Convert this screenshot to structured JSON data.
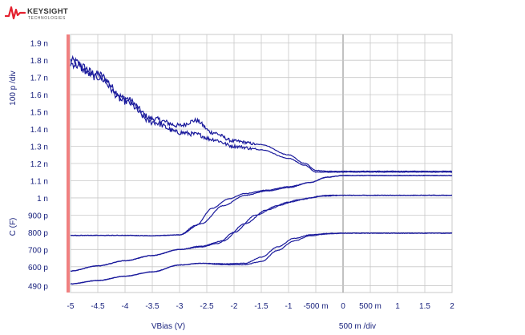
{
  "brand": {
    "name": "KEYSIGHT",
    "sub": "TECHNOLOGIES",
    "logo_color": "#e4202e"
  },
  "colors": {
    "trace": "#1a1a9c",
    "grid": "#c8c8c8",
    "zero_line": "#a0a0a0",
    "marker_bar": "#f08080",
    "text": "#1a237e"
  },
  "chart_data": {
    "type": "line",
    "xlabel": "VBias (V)",
    "x_scale_label": "500 m /div",
    "y_axis_label": "C (F)",
    "y_scale_label": "100 p /div",
    "xlim": [
      -5,
      2
    ],
    "ylim": [
      0.45,
      1.95
    ],
    "y_unit": "nF",
    "x_ticks": [
      "-5",
      "-4.5",
      "-4",
      "-3.5",
      "-3",
      "-2.5",
      "-2",
      "-1.5",
      "-1",
      "-500 m",
      "0",
      "500 m",
      "1",
      "1.5",
      "2"
    ],
    "y_ticks": [
      "1.9 n",
      "1.8 n",
      "1.7 n",
      "1.6 n",
      "1.5 n",
      "1.4 n",
      "1.3 n",
      "1.2 n",
      "1.1 n",
      "1 n",
      "900 p",
      "800 p",
      "700 p",
      "600 p",
      "490 p"
    ],
    "series": [
      {
        "x": [
          -5,
          -4.5,
          -4,
          -3.5,
          -3,
          -2.7,
          -2.4,
          -2,
          -1.5,
          -1,
          -0.7,
          -0.5,
          -0.3,
          0,
          0.5,
          1,
          1.5,
          2
        ],
        "y": [
          1.8,
          1.72,
          1.58,
          1.46,
          1.42,
          1.45,
          1.38,
          1.33,
          1.31,
          1.25,
          1.2,
          1.16,
          1.155,
          1.155,
          1.155,
          1.155,
          1.155,
          1.155
        ]
      },
      {
        "x": [
          -5,
          -4.5,
          -4,
          -3.5,
          -3,
          -2.7,
          -2.4,
          -2,
          -1.5,
          -1,
          -0.7,
          -0.5,
          -0.3,
          0,
          0.5,
          1,
          1.5,
          2
        ],
        "y": [
          1.78,
          1.7,
          1.56,
          1.44,
          1.38,
          1.37,
          1.34,
          1.3,
          1.28,
          1.23,
          1.19,
          1.15,
          1.15,
          1.15,
          1.15,
          1.15,
          1.15,
          1.15
        ]
      },
      {
        "x": [
          -5,
          -4,
          -3.5,
          -3,
          -2.6,
          -2.2,
          -1.8,
          -1.4,
          -1,
          -0.6,
          -0.3,
          0,
          0.5,
          1,
          1.5,
          2
        ],
        "y": [
          0.782,
          0.782,
          0.78,
          0.785,
          0.85,
          0.955,
          1.015,
          1.04,
          1.06,
          1.09,
          1.12,
          1.13,
          1.13,
          1.13,
          1.13,
          1.13
        ]
      },
      {
        "x": [
          -5,
          -4,
          -3.5,
          -3,
          -2.7,
          -2.4,
          -2.1,
          -1.8,
          -1.4,
          -1,
          -0.6,
          -0.3,
          0,
          0.5,
          1,
          1.5,
          2
        ],
        "y": [
          0.782,
          0.782,
          0.78,
          0.785,
          0.84,
          0.94,
          0.995,
          1.025,
          1.045,
          1.065,
          1.09,
          1.12,
          1.13,
          1.13,
          1.13,
          1.13,
          1.13
        ]
      },
      {
        "x": [
          -5,
          -4.5,
          -4,
          -3.5,
          -3,
          -2.6,
          -2.2,
          -1.8,
          -1.4,
          -1,
          -0.6,
          -0.3,
          0,
          0.5,
          1,
          1.5,
          2
        ],
        "y": [
          0.575,
          0.605,
          0.635,
          0.665,
          0.7,
          0.72,
          0.75,
          0.85,
          0.93,
          0.975,
          1.0,
          1.015,
          1.015,
          1.015,
          1.015,
          1.015,
          1.015
        ]
      },
      {
        "x": [
          -5,
          -4.5,
          -4,
          -3.5,
          -3,
          -2.6,
          -2.3,
          -2,
          -1.6,
          -1.2,
          -0.8,
          -0.4,
          0,
          0.5,
          1,
          1.5,
          2
        ],
        "y": [
          0.575,
          0.605,
          0.635,
          0.665,
          0.7,
          0.715,
          0.735,
          0.8,
          0.9,
          0.955,
          0.99,
          1.01,
          1.015,
          1.015,
          1.015,
          1.015,
          1.015
        ]
      },
      {
        "x": [
          -5,
          -4.5,
          -4,
          -3.5,
          -3,
          -2.6,
          -2.2,
          -1.8,
          -1.5,
          -1.2,
          -0.9,
          -0.6,
          -0.3,
          0,
          0.5,
          1,
          1.5,
          2
        ],
        "y": [
          0.5,
          0.52,
          0.545,
          0.57,
          0.61,
          0.62,
          0.617,
          0.62,
          0.655,
          0.715,
          0.765,
          0.785,
          0.793,
          0.795,
          0.795,
          0.795,
          0.795,
          0.795
        ]
      },
      {
        "x": [
          -5,
          -4.5,
          -4,
          -3.5,
          -3,
          -2.6,
          -2.2,
          -1.8,
          -1.5,
          -1.2,
          -0.9,
          -0.6,
          -0.3,
          0,
          0.5,
          1,
          1.5,
          2
        ],
        "y": [
          0.5,
          0.52,
          0.545,
          0.57,
          0.61,
          0.62,
          0.612,
          0.612,
          0.63,
          0.695,
          0.75,
          0.78,
          0.79,
          0.795,
          0.795,
          0.795,
          0.795,
          0.795
        ]
      }
    ],
    "noise": [
      0.045,
      0.045,
      0,
      0,
      0,
      0,
      0,
      0
    ],
    "noise_x_max": -1.6
  }
}
